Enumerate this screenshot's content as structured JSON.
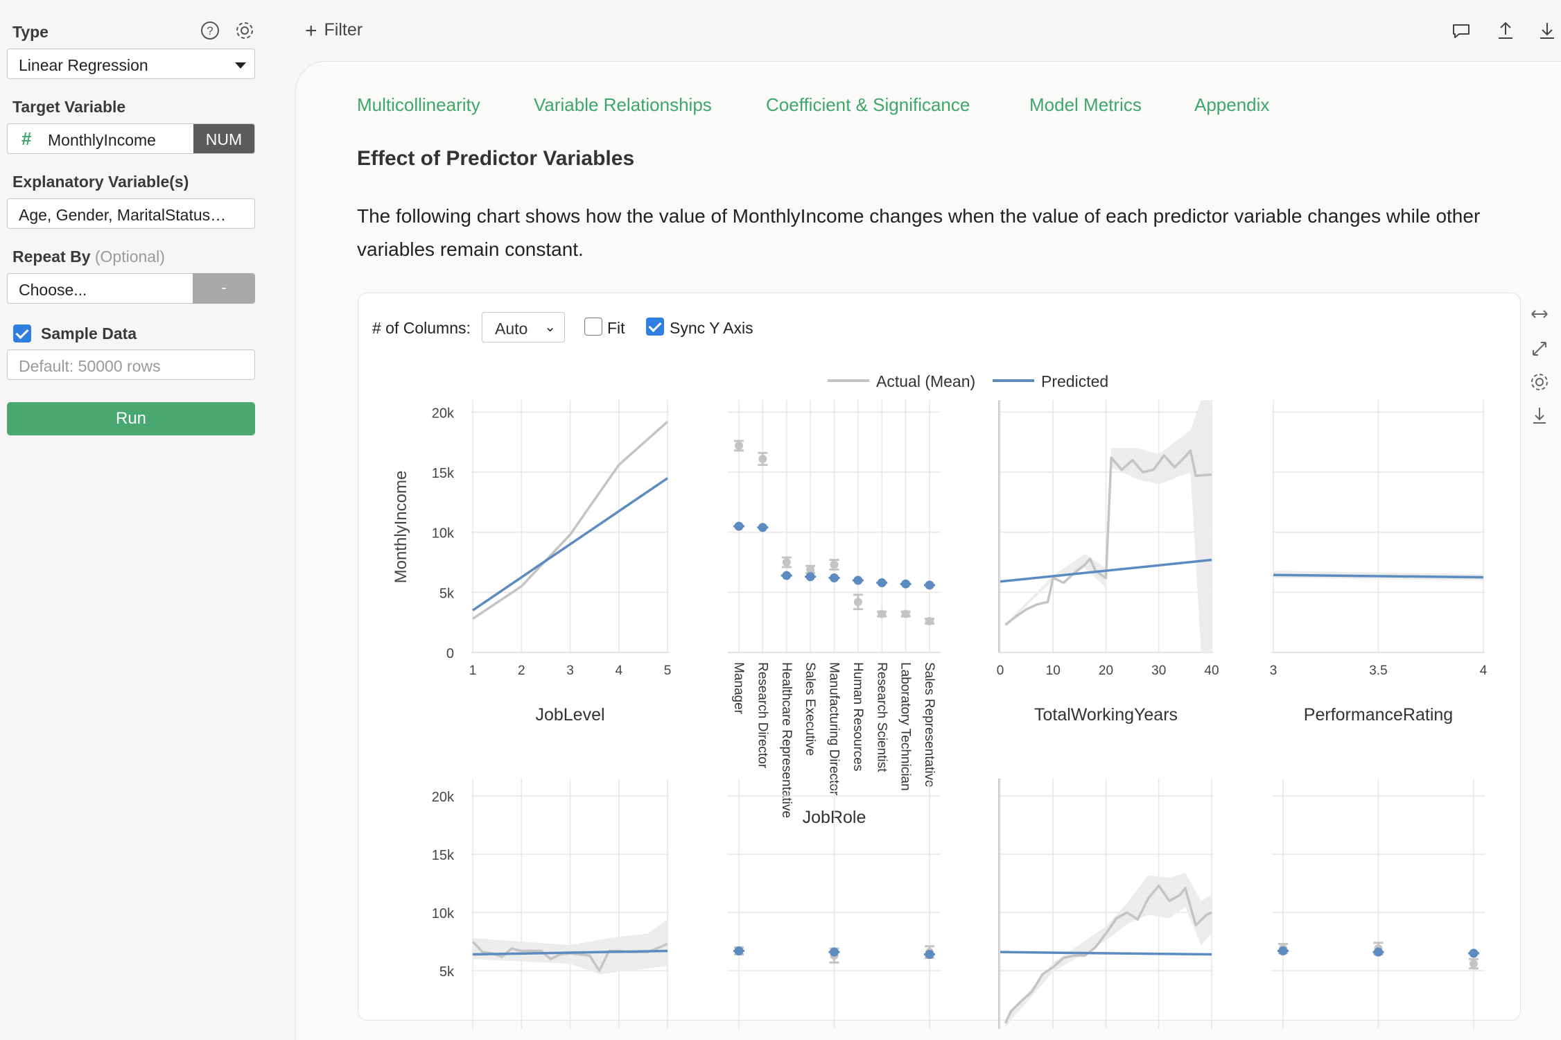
{
  "sidebar": {
    "type_label": "Type",
    "type_value": "Linear Regression",
    "target_label": "Target Variable",
    "target_hash": "#",
    "target_value": "MonthlyIncome",
    "target_badge": "NUM",
    "explanatory_label": "Explanatory Variable(s)",
    "explanatory_value": "Age, Gender, MaritalStatus…",
    "repeat_label": "Repeat By",
    "repeat_optional": "(Optional)",
    "repeat_placeholder": "Choose...",
    "repeat_button": "-",
    "sample_label": "Sample Data",
    "sample_checked": true,
    "sample_placeholder": "Default: 50000 rows",
    "run_label": "Run",
    "icons": [
      "help-icon",
      "gear-icon"
    ]
  },
  "toolbar": {
    "filter_label": "Filter",
    "icons": [
      "comment-icon",
      "upload-icon",
      "download-icon"
    ]
  },
  "tabs": [
    "Multicollinearity",
    "Variable Relationships",
    "Coefficient & Significance",
    "Model Metrics",
    "Appendix"
  ],
  "section": {
    "title": "Effect of Predictor Variables",
    "description": "The following chart shows how the value of MonthlyIncome changes when the value of each predictor variable changes while other variables remain constant."
  },
  "chart_controls": {
    "columns_label": "# of Columns:",
    "columns_value": "Auto",
    "fit_label": "Fit",
    "fit_checked": false,
    "sync_label": "Sync Y Axis",
    "sync_checked": true,
    "side_icons": [
      "expand-horizontal-icon",
      "fullscreen-icon",
      "gear-icon",
      "download-icon"
    ]
  },
  "colors": {
    "accent": "#48a86f",
    "actual": "#c4c4c4",
    "predicted": "#5b8bbf",
    "band": "#ececec"
  },
  "chart_data": {
    "type": "line",
    "legend": [
      {
        "name": "Actual (Mean)",
        "color": "#c4c4c4"
      },
      {
        "name": "Predicted",
        "color": "#5b8bbf"
      }
    ],
    "ylabel": "MonthlyIncome",
    "ylim": [
      0,
      21000
    ],
    "yticks": [
      0,
      5000,
      10000,
      15000,
      20000
    ],
    "ytick_labels": [
      "0",
      "5k",
      "10k",
      "15k",
      "20k"
    ],
    "row2_ytick_labels": [
      "5k",
      "10k",
      "15k",
      "20k"
    ],
    "grid": true,
    "panels": [
      {
        "id": "joblevel",
        "type": "line",
        "title": "JobLevel",
        "xlim": [
          1,
          5
        ],
        "xticks": [
          1,
          2,
          3,
          4,
          5
        ],
        "xtick_labels": [
          "1",
          "2",
          "3",
          "4",
          "5"
        ],
        "actual": [
          [
            1,
            2800
          ],
          [
            2,
            5500
          ],
          [
            3,
            9800
          ],
          [
            4,
            15600
          ],
          [
            5,
            19200
          ]
        ],
        "predicted": [
          [
            1,
            3500
          ],
          [
            5,
            14500
          ]
        ]
      },
      {
        "id": "jobrole",
        "type": "category",
        "title": "JobRole",
        "categories": [
          "Manager",
          "Research Director",
          "Healthcare Representative",
          "Sales Executive",
          "Manufacturing Director",
          "Human Resources",
          "Research Scientist",
          "Laboratory Technician",
          "Sales Representative"
        ],
        "actual": [
          17200,
          16100,
          7500,
          6900,
          7300,
          4200,
          3200,
          3200,
          2600
        ],
        "actual_err": [
          400,
          500,
          400,
          300,
          400,
          600,
          200,
          200,
          200
        ],
        "predicted": [
          10500,
          10400,
          6400,
          6300,
          6200,
          6000,
          5800,
          5700,
          5600
        ]
      },
      {
        "id": "totalworkingyears",
        "type": "line",
        "title": "TotalWorkingYears",
        "xlim": [
          0,
          40
        ],
        "xticks": [
          0,
          10,
          20,
          30,
          40
        ],
        "xtick_labels": [
          "0",
          "10",
          "20",
          "30",
          "40"
        ],
        "actual": [
          [
            1,
            2300
          ],
          [
            3,
            3000
          ],
          [
            5,
            3600
          ],
          [
            7,
            4000
          ],
          [
            9,
            4200
          ],
          [
            10,
            6200
          ],
          [
            12,
            5800
          ],
          [
            14,
            6600
          ],
          [
            16,
            7300
          ],
          [
            17,
            7800
          ],
          [
            18,
            6800
          ],
          [
            20,
            6200
          ],
          [
            21,
            16200
          ],
          [
            23,
            15200
          ],
          [
            25,
            16000
          ],
          [
            27,
            15000
          ],
          [
            29,
            15200
          ],
          [
            31,
            16400
          ],
          [
            33,
            15400
          ],
          [
            35,
            16300
          ],
          [
            36,
            16800
          ],
          [
            37,
            14700
          ],
          [
            40,
            14800
          ]
        ],
        "band_upper": [
          [
            1,
            2400
          ],
          [
            10,
            6400
          ],
          [
            16,
            8200
          ],
          [
            20,
            7000
          ],
          [
            21,
            17000
          ],
          [
            26,
            17000
          ],
          [
            30,
            16500
          ],
          [
            36,
            18500
          ],
          [
            38,
            21000
          ],
          [
            40,
            21000
          ]
        ],
        "band_lower": [
          [
            1,
            2200
          ],
          [
            10,
            6000
          ],
          [
            16,
            7000
          ],
          [
            20,
            5400
          ],
          [
            21,
            15400
          ],
          [
            26,
            14400
          ],
          [
            30,
            14000
          ],
          [
            36,
            15000
          ],
          [
            38,
            0
          ],
          [
            40,
            0
          ]
        ],
        "predicted": [
          [
            0,
            5900
          ],
          [
            40,
            7700
          ]
        ]
      },
      {
        "id": "performancerating",
        "type": "line",
        "title": "PerformanceRating",
        "xlim": [
          3,
          4
        ],
        "xticks": [
          3,
          3.5,
          4
        ],
        "xtick_labels": [
          "3",
          "3.5",
          "4"
        ],
        "band_upper": [
          [
            3,
            6800
          ],
          [
            4,
            6500
          ]
        ],
        "band_lower": [
          [
            3,
            6200
          ],
          [
            4,
            6000
          ]
        ],
        "predicted": [
          [
            3,
            6450
          ],
          [
            4,
            6250
          ]
        ]
      },
      {
        "id": "row2-1",
        "type": "line",
        "title": "",
        "xlim": [
          0,
          20
        ],
        "actual": [
          [
            0,
            7500
          ],
          [
            1,
            6600
          ],
          [
            2,
            6500
          ],
          [
            3,
            6200
          ],
          [
            4,
            6900
          ],
          [
            5,
            6700
          ],
          [
            6,
            6700
          ],
          [
            7,
            6700
          ],
          [
            8,
            6000
          ],
          [
            9,
            6400
          ],
          [
            10,
            6500
          ],
          [
            11,
            6400
          ],
          [
            12,
            6300
          ],
          [
            13,
            5000
          ],
          [
            14,
            6700
          ],
          [
            15,
            6700
          ],
          [
            16,
            6600
          ],
          [
            18,
            6600
          ],
          [
            20,
            7300
          ]
        ],
        "band_upper": [
          [
            0,
            7800
          ],
          [
            5,
            7500
          ],
          [
            10,
            7200
          ],
          [
            14,
            7800
          ],
          [
            18,
            8200
          ],
          [
            20,
            9400
          ]
        ],
        "band_lower": [
          [
            0,
            6000
          ],
          [
            5,
            5800
          ],
          [
            10,
            5600
          ],
          [
            13,
            4700
          ],
          [
            16,
            5000
          ],
          [
            20,
            5400
          ]
        ],
        "predicted": [
          [
            0,
            6400
          ],
          [
            20,
            6700
          ]
        ]
      },
      {
        "id": "row2-2",
        "type": "category",
        "title": "",
        "categories": [
          "",
          "",
          ""
        ],
        "actual": [
          6700,
          6300,
          6600
        ],
        "actual_err": [
          300,
          600,
          500
        ],
        "predicted": [
          6700,
          6600,
          6400
        ]
      },
      {
        "id": "row2-3",
        "type": "line",
        "title": "",
        "xlim": [
          0,
          40
        ],
        "actual": [
          [
            1,
            500
          ],
          [
            2,
            1500
          ],
          [
            4,
            2400
          ],
          [
            6,
            3200
          ],
          [
            8,
            4700
          ],
          [
            10,
            5300
          ],
          [
            12,
            6100
          ],
          [
            14,
            6300
          ],
          [
            16,
            6300
          ],
          [
            18,
            7000
          ],
          [
            20,
            8200
          ],
          [
            22,
            9500
          ],
          [
            24,
            10000
          ],
          [
            26,
            9400
          ],
          [
            28,
            11200
          ],
          [
            30,
            12300
          ],
          [
            32,
            11000
          ],
          [
            34,
            11500
          ],
          [
            35,
            12100
          ],
          [
            37,
            8900
          ],
          [
            39,
            9800
          ],
          [
            40,
            10000
          ]
        ],
        "band_upper": [
          [
            1,
            800
          ],
          [
            10,
            5700
          ],
          [
            20,
            8800
          ],
          [
            24,
            10800
          ],
          [
            28,
            13200
          ],
          [
            32,
            13000
          ],
          [
            35,
            13400
          ],
          [
            38,
            11000
          ],
          [
            40,
            11500
          ]
        ],
        "band_lower": [
          [
            1,
            200
          ],
          [
            10,
            4900
          ],
          [
            20,
            7600
          ],
          [
            24,
            9000
          ],
          [
            28,
            9800
          ],
          [
            32,
            9500
          ],
          [
            35,
            10500
          ],
          [
            38,
            7200
          ],
          [
            40,
            8200
          ]
        ],
        "predicted": [
          [
            0,
            6600
          ],
          [
            40,
            6400
          ]
        ]
      },
      {
        "id": "row2-4",
        "type": "category",
        "title": "",
        "categories": [
          "",
          "",
          ""
        ],
        "actual": [
          6900,
          6900,
          5600
        ],
        "actual_err": [
          400,
          500,
          400
        ],
        "predicted": [
          6700,
          6600,
          6500
        ]
      }
    ]
  }
}
